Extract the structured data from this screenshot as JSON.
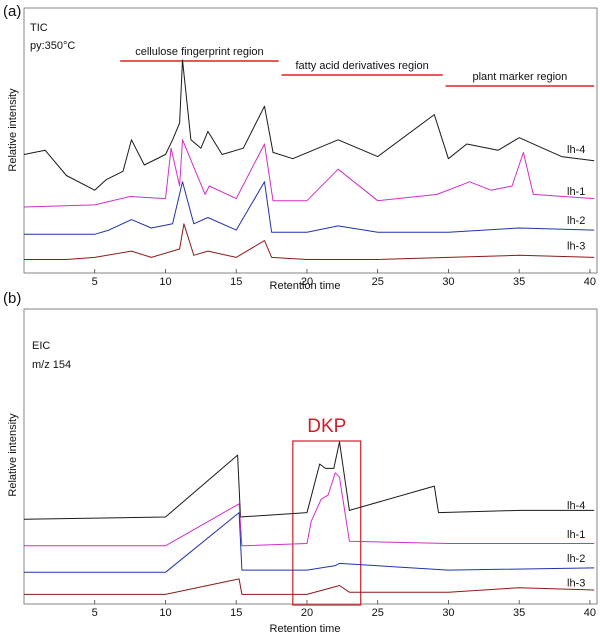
{
  "panels": {
    "a": {
      "label": "(a)",
      "info_lines": [
        "TIC",
        "py:350°C"
      ],
      "regions": [
        {
          "label": "cellulose fingerprint region",
          "x_start": 6.8,
          "x_end": 18.0
        },
        {
          "label": "fatty acid derivatives region",
          "x_start": 18.2,
          "x_end": 29.6
        },
        {
          "label": "plant marker region",
          "x_start": 29.8,
          "x_end": 40.3
        }
      ]
    },
    "b": {
      "label": "(b)",
      "info_lines": [
        "EIC",
        "m/z 154"
      ],
      "box_label": "DKP",
      "box_x_start": 19.0,
      "box_x_end": 23.8
    }
  },
  "chart_data": [
    {
      "type": "line",
      "panel": "a",
      "xlabel": "Retention time",
      "ylabel": "Relative intensity",
      "xlim": [
        0,
        40.5
      ],
      "xticks": [
        5,
        10,
        15,
        20,
        25,
        30,
        35,
        40
      ],
      "colors": {
        "lh-4": "#1a1a1a",
        "lh-1": "#d12fc8",
        "lh-2": "#2233aa",
        "lh-3": "#8b1a1a",
        "region": "#e02020"
      },
      "series": [
        {
          "name": "lh-4",
          "baseline": 0.52,
          "x": [
            0,
            1.5,
            3,
            5,
            5.8,
            7,
            7.6,
            8.5,
            10,
            10.5,
            11,
            11.2,
            11.8,
            12.5,
            13,
            14,
            15.5,
            17,
            17.6,
            19,
            22.2,
            25,
            29,
            30,
            31.3,
            33.5,
            35,
            38,
            40.3
          ],
          "y": [
            0.55,
            0.57,
            0.45,
            0.38,
            0.43,
            0.47,
            0.62,
            0.5,
            0.55,
            0.62,
            0.7,
            1.0,
            0.62,
            0.58,
            0.66,
            0.55,
            0.58,
            0.78,
            0.56,
            0.53,
            0.62,
            0.54,
            0.74,
            0.53,
            0.6,
            0.57,
            0.63,
            0.54,
            0.52
          ]
        },
        {
          "name": "lh-1",
          "baseline": 0.32,
          "x": [
            0,
            5,
            7.5,
            10,
            10.4,
            11,
            11.2,
            12.8,
            13.1,
            15,
            17,
            17.6,
            20,
            22.2,
            25,
            29.2,
            31.5,
            33,
            34.5,
            35.3,
            36,
            40.3
          ],
          "y": [
            0.3,
            0.31,
            0.35,
            0.34,
            0.58,
            0.4,
            0.62,
            0.36,
            0.4,
            0.34,
            0.6,
            0.33,
            0.33,
            0.48,
            0.33,
            0.36,
            0.42,
            0.38,
            0.4,
            0.56,
            0.36,
            0.34
          ]
        },
        {
          "name": "lh-2",
          "baseline": 0.18,
          "x": [
            0,
            5,
            6,
            7.6,
            9,
            10.5,
            11.2,
            12,
            13,
            15,
            17,
            17.5,
            20,
            22.2,
            25,
            30,
            35,
            40.3
          ],
          "y": [
            0.17,
            0.17,
            0.19,
            0.24,
            0.2,
            0.22,
            0.42,
            0.22,
            0.25,
            0.19,
            0.42,
            0.18,
            0.18,
            0.21,
            0.18,
            0.18,
            0.2,
            0.19
          ]
        },
        {
          "name": "lh-3",
          "baseline": 0.06,
          "x": [
            0,
            3,
            5,
            7.6,
            9,
            11,
            11.3,
            12,
            13,
            15,
            17,
            17.5,
            20,
            25,
            30,
            35,
            40.3
          ],
          "y": [
            0.05,
            0.05,
            0.06,
            0.09,
            0.06,
            0.1,
            0.22,
            0.07,
            0.09,
            0.06,
            0.14,
            0.06,
            0.05,
            0.05,
            0.06,
            0.07,
            0.06
          ]
        }
      ]
    },
    {
      "type": "line",
      "panel": "b",
      "xlabel": "Retention time",
      "ylabel": "Relative intensity",
      "xlim": [
        0,
        40.5
      ],
      "xticks": [
        5,
        10,
        15,
        20,
        25,
        30,
        35,
        40
      ],
      "colors": {
        "lh-4": "#1a1a1a",
        "lh-1": "#d12fc8",
        "lh-2": "#2233aa",
        "lh-3": "#8b1a1a",
        "box": "#cc1f2a"
      },
      "series": [
        {
          "name": "lh-4",
          "baseline": 0.38,
          "x": [
            0,
            10,
            15.1,
            15.3,
            20,
            20.9,
            21.3,
            21.9,
            22.3,
            23,
            29,
            29.3,
            35,
            40.3
          ],
          "y": [
            0.37,
            0.38,
            0.66,
            0.38,
            0.4,
            0.62,
            0.6,
            0.6,
            0.72,
            0.41,
            0.52,
            0.4,
            0.41,
            0.41
          ]
        },
        {
          "name": "lh-1",
          "baseline": 0.25,
          "x": [
            0,
            10,
            15.2,
            15.4,
            20,
            20.3,
            21,
            21.5,
            22,
            22.3,
            23,
            30,
            40.3
          ],
          "y": [
            0.25,
            0.25,
            0.44,
            0.25,
            0.26,
            0.36,
            0.46,
            0.48,
            0.58,
            0.56,
            0.27,
            0.26,
            0.26
          ]
        },
        {
          "name": "lh-2",
          "baseline": 0.14,
          "x": [
            0,
            10,
            15.2,
            15.4,
            20,
            22,
            22.3,
            30,
            40.3
          ],
          "y": [
            0.13,
            0.13,
            0.4,
            0.14,
            0.14,
            0.16,
            0.17,
            0.14,
            0.15
          ]
        },
        {
          "name": "lh-3",
          "baseline": 0.03,
          "x": [
            0,
            10,
            15.2,
            15.4,
            20,
            22.3,
            23,
            30,
            35,
            40.3
          ],
          "y": [
            0.03,
            0.03,
            0.1,
            0.03,
            0.03,
            0.07,
            0.04,
            0.04,
            0.06,
            0.05
          ]
        }
      ]
    }
  ]
}
